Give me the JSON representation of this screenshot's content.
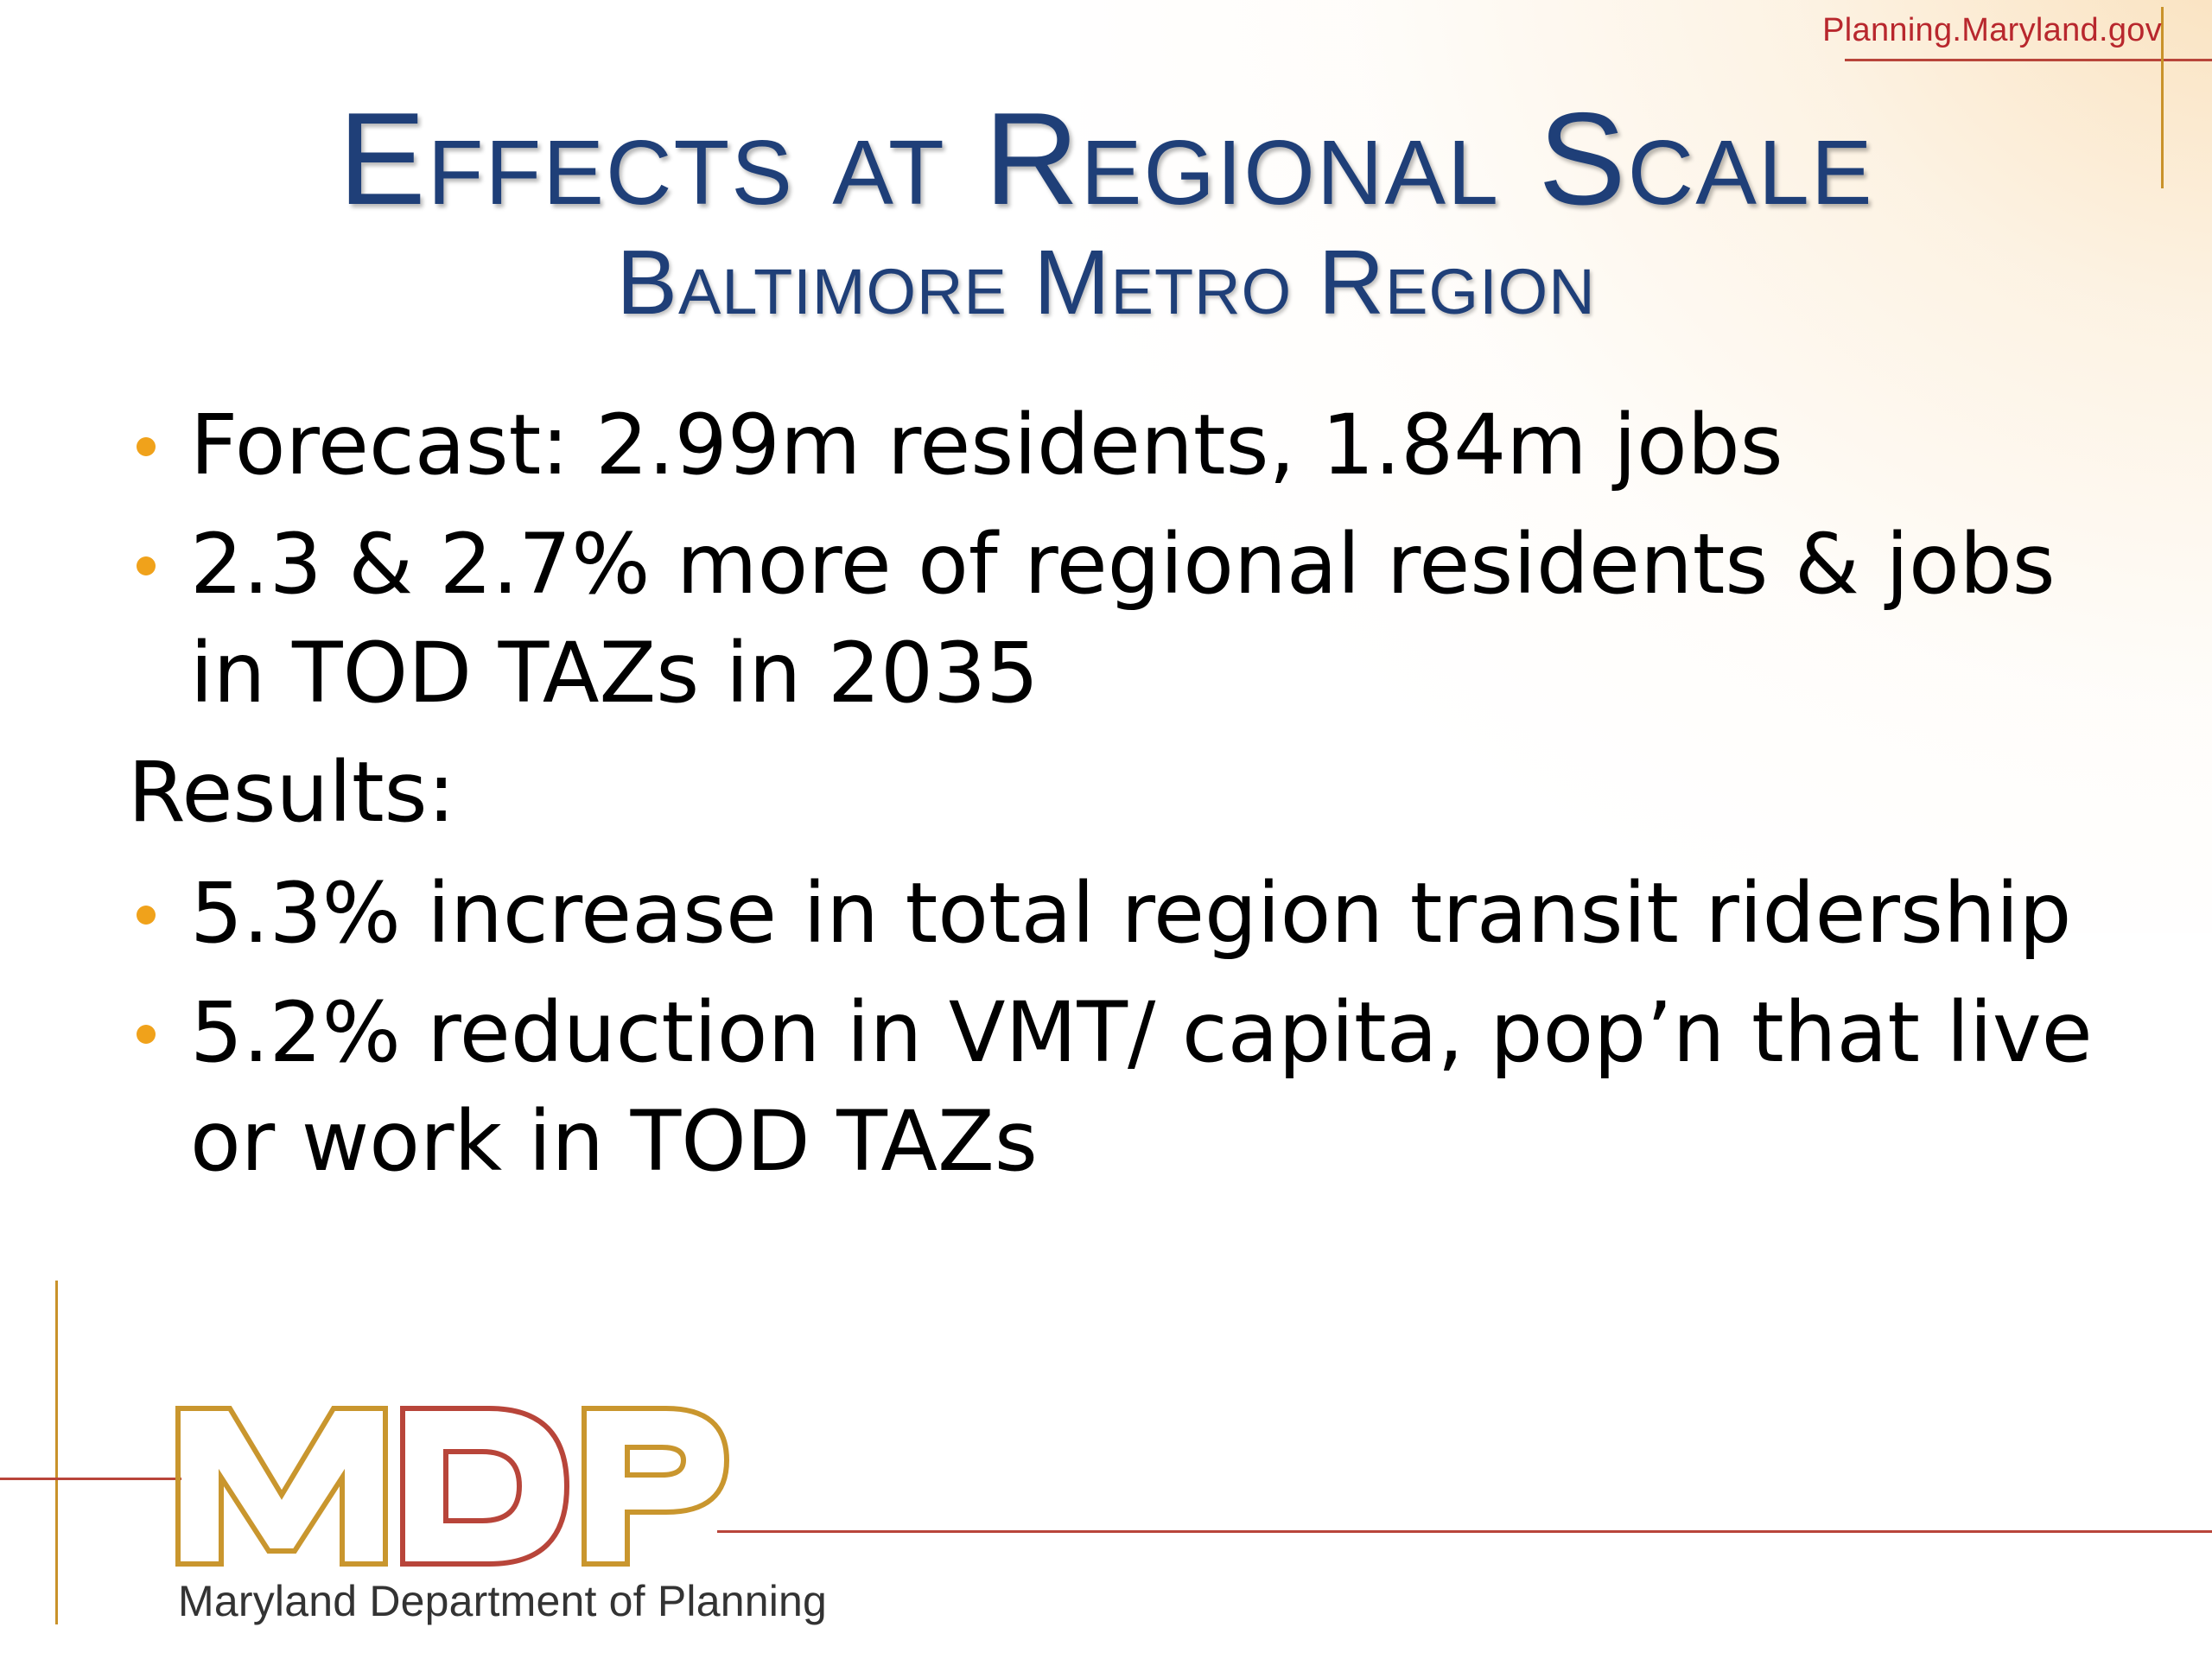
{
  "header": {
    "site_url": "Planning.Maryland.gov"
  },
  "slide": {
    "title": "Effects at Regional Scale",
    "subtitle": "Baltimore Metro Region",
    "bullets_top": [
      "Forecast: 2.99m residents, 1.84m jobs",
      "2.3 & 2.7% more of regional residents & jobs in TOD TAZs in 2035"
    ],
    "results_heading": "Results:",
    "bullets_results": [
      "5.3% increase in total region transit ridership",
      "5.2% reduction in VMT/ capita, pop’n that live or work in TOD TAZs"
    ]
  },
  "footer": {
    "logo_text": "MDP",
    "agency_name": "Maryland Department of Planning"
  },
  "colors": {
    "title": "#1f3f78",
    "bullet": "#f0a21b",
    "url": "#b8272d",
    "rule_red": "#b8453a",
    "rule_gold": "#c9922a",
    "logo_gold": "#c9962e",
    "logo_red": "#b8453a"
  }
}
